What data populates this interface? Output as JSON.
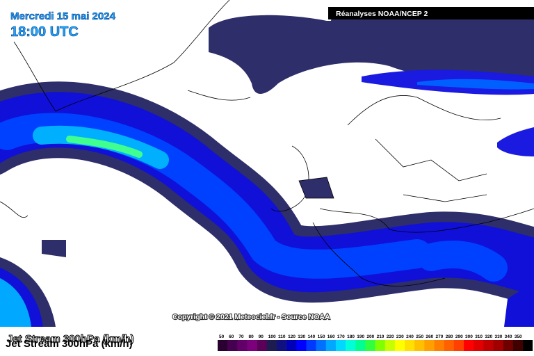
{
  "header": {
    "date": "Mercredi 15 mai 2024",
    "time": "18:00 UTC",
    "source": "Réanalyses NOAA/NCEP 2"
  },
  "copyright": "Copyright © 2021 Meteociel.fr - Source NOAA",
  "parameter": "Jet Stream 300hPa (km/h)",
  "legend": {
    "labels": [
      "50",
      "60",
      "70",
      "80",
      "90",
      "100",
      "110",
      "120",
      "130",
      "140",
      "150",
      "160",
      "170",
      "180",
      "190",
      "200",
      "210",
      "220",
      "230",
      "240",
      "250",
      "260",
      "270",
      "280",
      "290",
      "300",
      "310",
      "320",
      "330",
      "340",
      "350"
    ],
    "colors": [
      "#2a0030",
      "#45004f",
      "#62006a",
      "#7c007c",
      "#5a0058",
      "#1c1c50",
      "#101080",
      "#0000b8",
      "#0000ff",
      "#0038ff",
      "#0070ff",
      "#00a8ff",
      "#00d8ff",
      "#00ffd8",
      "#00ff90",
      "#30ff40",
      "#80ff00",
      "#c8ff00",
      "#ffff00",
      "#ffe000",
      "#ffc000",
      "#ffa000",
      "#ff8000",
      "#ff6000",
      "#ff4000",
      "#ff0000",
      "#e00000",
      "#c00000",
      "#a00000",
      "#700000",
      "#400000"
    ]
  }
}
